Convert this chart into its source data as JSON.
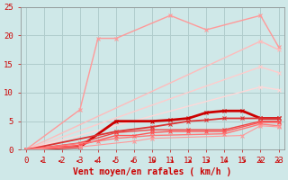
{
  "xlabel": "Vent moyen/en rafales ( km/h )",
  "bg_color": "#cfe8e8",
  "grid_color": "#b0cccc",
  "ylim": [
    0,
    25
  ],
  "yticks": [
    0,
    5,
    10,
    15,
    20,
    25
  ],
  "xtick_labels": [
    "0",
    "1",
    "2",
    "3",
    "4",
    "5",
    "6",
    "10",
    "11",
    "12",
    "13",
    "14",
    "15",
    "22",
    "23"
  ],
  "xtick_pos": [
    0,
    1,
    2,
    3,
    4,
    5,
    6,
    7,
    8,
    9,
    10,
    11,
    12,
    13,
    14
  ],
  "lines": [
    {
      "xi": [
        0,
        3,
        4,
        5,
        8,
        10,
        13,
        14
      ],
      "y": [
        0,
        7,
        19.5,
        19.5,
        23.5,
        21.0,
        23.5,
        18.0
      ],
      "color": "#ff9999",
      "lw": 1.0,
      "marker": "x",
      "ms": 3
    },
    {
      "xi": [
        0,
        13,
        14
      ],
      "y": [
        0,
        19.0,
        17.5
      ],
      "color": "#ffbbbb",
      "lw": 1.0,
      "marker": "x",
      "ms": 3
    },
    {
      "xi": [
        0,
        13,
        14
      ],
      "y": [
        0,
        14.5,
        13.5
      ],
      "color": "#ffcccc",
      "lw": 1.0,
      "marker": "x",
      "ms": 3
    },
    {
      "xi": [
        0,
        13,
        14
      ],
      "y": [
        0,
        11.0,
        10.5
      ],
      "color": "#ffd8d8",
      "lw": 1.0,
      "marker": "x",
      "ms": 3
    },
    {
      "xi": [
        0,
        3,
        5,
        7,
        8,
        9,
        10,
        11,
        12,
        13,
        14
      ],
      "y": [
        0,
        0.5,
        5.0,
        5.0,
        5.2,
        5.5,
        6.5,
        6.8,
        6.8,
        5.5,
        5.5
      ],
      "color": "#cc0000",
      "lw": 2.0,
      "marker": "x",
      "ms": 3
    },
    {
      "xi": [
        0,
        5,
        7,
        8,
        9,
        10,
        11,
        12,
        13,
        14
      ],
      "y": [
        0,
        3.2,
        4.0,
        4.5,
        5.0,
        5.2,
        5.5,
        5.5,
        5.5,
        5.5
      ],
      "color": "#dd3333",
      "lw": 1.3,
      "marker": "x",
      "ms": 3
    },
    {
      "xi": [
        0,
        3,
        5,
        7,
        9,
        11,
        13,
        14
      ],
      "y": [
        0,
        1.2,
        3.0,
        3.5,
        3.5,
        3.5,
        5.0,
        5.0
      ],
      "color": "#ee4444",
      "lw": 1.0,
      "marker": "x",
      "ms": 3
    },
    {
      "xi": [
        0,
        3,
        5,
        6,
        7,
        8,
        9,
        10,
        11,
        13,
        14
      ],
      "y": [
        0,
        0.8,
        2.5,
        2.5,
        3.0,
        3.2,
        3.2,
        3.2,
        3.2,
        4.8,
        4.8
      ],
      "color": "#ff5555",
      "lw": 1.0,
      "marker": "x",
      "ms": 3
    },
    {
      "xi": [
        0,
        4,
        5,
        7,
        11,
        13,
        14
      ],
      "y": [
        0,
        1.5,
        2.0,
        2.5,
        2.8,
        4.5,
        4.2
      ],
      "color": "#ff7777",
      "lw": 1.0,
      "marker": "x",
      "ms": 3
    },
    {
      "xi": [
        0,
        3,
        6,
        7,
        12,
        13,
        14
      ],
      "y": [
        0,
        0.5,
        1.5,
        2.0,
        2.5,
        4.2,
        4.0
      ],
      "color": "#ff9999",
      "lw": 0.8,
      "marker": "x",
      "ms": 3
    }
  ],
  "xlabel_color": "#cc0000",
  "xlabel_fontsize": 7,
  "tick_color": "#cc0000",
  "tick_fontsize": 6.5
}
